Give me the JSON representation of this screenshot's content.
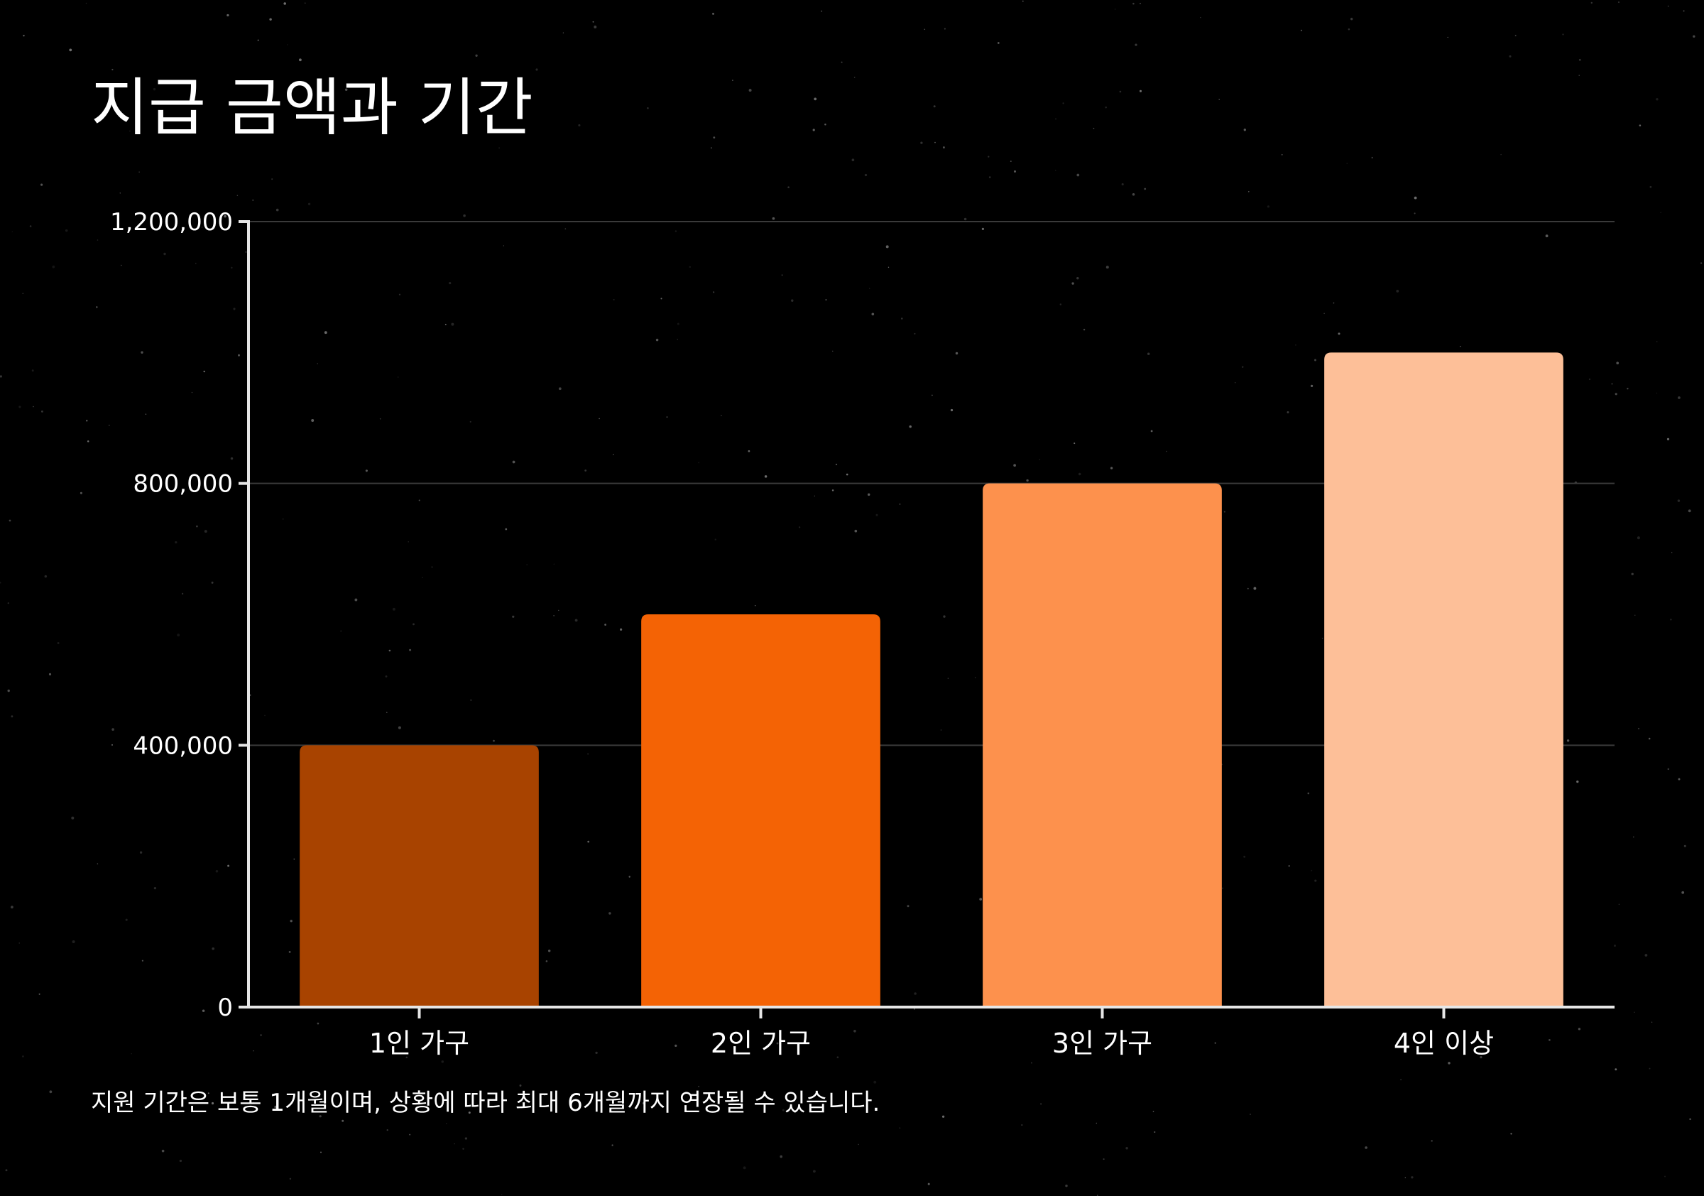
{
  "title": "지급 금액과 기간",
  "footnote": "지원 기간은 보통 1개월이며, 상황에 따라 최대 6개월까지 연장될 수 있습니다.",
  "colors": {
    "background": "#000000",
    "text": "#ffffff",
    "axis": "#e6e6e6",
    "grid": "#3a3a3a",
    "bars": [
      "#a84300",
      "#f46305",
      "#fd914d",
      "#fdbf98"
    ]
  },
  "chart_data": {
    "type": "bar",
    "categories": [
      "1인 가구",
      "2인 가구",
      "3인 가구",
      "4인 이상"
    ],
    "values": [
      400000,
      600000,
      800000,
      1000000
    ],
    "yticks": [
      0,
      400000,
      800000,
      1200000
    ],
    "ytick_labels": [
      "0",
      "400,000",
      "800,000",
      "1,200,000"
    ],
    "ylim": [
      0,
      1200000
    ],
    "xlabel": "",
    "ylabel": "",
    "grid": true,
    "legend": "none"
  }
}
